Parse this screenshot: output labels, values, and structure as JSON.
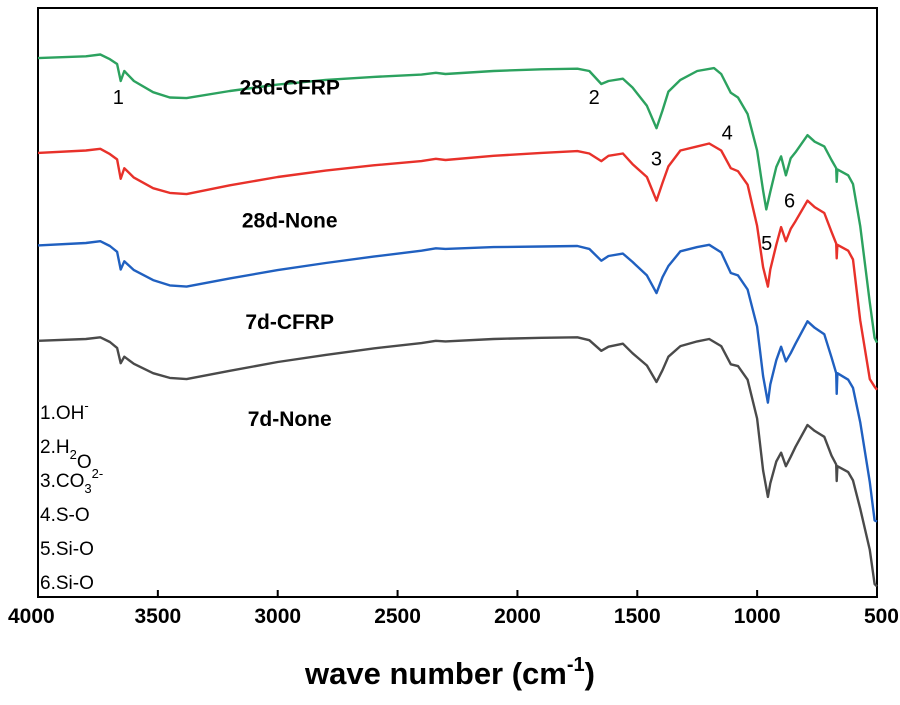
{
  "chart_data": {
    "type": "line",
    "title": "",
    "xlabel_main": "wave number  (cm",
    "xlabel_sup": "-1",
    "xlabel_end": ")",
    "ylabel": "",
    "xlim": [
      4000,
      500
    ],
    "ylim": [
      0,
      1
    ],
    "xticks": [
      4000,
      3500,
      3000,
      2500,
      2000,
      1500,
      1000,
      500
    ],
    "xtick_labels": [
      "4000",
      "3500",
      "3000",
      "2500",
      "2000",
      "1500",
      "1000",
      "500"
    ],
    "grid": false,
    "series": [
      {
        "name": "28d-CFRP",
        "color": "#2ca25f",
        "points": [
          [
            4000,
            0.915
          ],
          [
            3800,
            0.918
          ],
          [
            3740,
            0.921
          ],
          [
            3700,
            0.913
          ],
          [
            3670,
            0.905
          ],
          [
            3655,
            0.876
          ],
          [
            3640,
            0.893
          ],
          [
            3600,
            0.876
          ],
          [
            3520,
            0.857
          ],
          [
            3450,
            0.848
          ],
          [
            3380,
            0.847
          ],
          [
            3200,
            0.859
          ],
          [
            3000,
            0.87
          ],
          [
            2800,
            0.878
          ],
          [
            2600,
            0.883
          ],
          [
            2400,
            0.887
          ],
          [
            2340,
            0.89
          ],
          [
            2300,
            0.888
          ],
          [
            2100,
            0.893
          ],
          [
            1900,
            0.896
          ],
          [
            1750,
            0.897
          ],
          [
            1700,
            0.893
          ],
          [
            1650,
            0.871
          ],
          [
            1620,
            0.876
          ],
          [
            1560,
            0.88
          ],
          [
            1520,
            0.865
          ],
          [
            1460,
            0.834
          ],
          [
            1420,
            0.796
          ],
          [
            1395,
            0.826
          ],
          [
            1370,
            0.858
          ],
          [
            1320,
            0.878
          ],
          [
            1250,
            0.893
          ],
          [
            1180,
            0.898
          ],
          [
            1150,
            0.888
          ],
          [
            1110,
            0.856
          ],
          [
            1080,
            0.848
          ],
          [
            1040,
            0.82
          ],
          [
            1000,
            0.758
          ],
          [
            975,
            0.69
          ],
          [
            962,
            0.658
          ],
          [
            945,
            0.688
          ],
          [
            920,
            0.73
          ],
          [
            900,
            0.748
          ],
          [
            880,
            0.716
          ],
          [
            860,
            0.745
          ],
          [
            840,
            0.755
          ],
          [
            790,
            0.784
          ],
          [
            760,
            0.773
          ],
          [
            720,
            0.765
          ],
          [
            690,
            0.742
          ],
          [
            670,
            0.728
          ],
          [
            668,
            0.705
          ],
          [
            665,
            0.726
          ],
          [
            620,
            0.716
          ],
          [
            600,
            0.701
          ],
          [
            570,
            0.63
          ],
          [
            530,
            0.5
          ],
          [
            510,
            0.44
          ],
          [
            500,
            0.432
          ]
        ]
      },
      {
        "name": "28d-None",
        "color": "#e8312a",
        "points": [
          [
            4000,
            0.754
          ],
          [
            3800,
            0.758
          ],
          [
            3740,
            0.761
          ],
          [
            3700,
            0.752
          ],
          [
            3670,
            0.743
          ],
          [
            3655,
            0.71
          ],
          [
            3640,
            0.728
          ],
          [
            3600,
            0.712
          ],
          [
            3520,
            0.694
          ],
          [
            3450,
            0.686
          ],
          [
            3380,
            0.684
          ],
          [
            3200,
            0.699
          ],
          [
            3000,
            0.713
          ],
          [
            2800,
            0.724
          ],
          [
            2600,
            0.733
          ],
          [
            2400,
            0.74
          ],
          [
            2340,
            0.744
          ],
          [
            2300,
            0.742
          ],
          [
            2100,
            0.749
          ],
          [
            1900,
            0.754
          ],
          [
            1750,
            0.757
          ],
          [
            1700,
            0.753
          ],
          [
            1650,
            0.74
          ],
          [
            1620,
            0.749
          ],
          [
            1560,
            0.753
          ],
          [
            1520,
            0.735
          ],
          [
            1460,
            0.713
          ],
          [
            1420,
            0.673
          ],
          [
            1395,
            0.703
          ],
          [
            1370,
            0.731
          ],
          [
            1320,
            0.758
          ],
          [
            1250,
            0.765
          ],
          [
            1200,
            0.77
          ],
          [
            1150,
            0.758
          ],
          [
            1110,
            0.728
          ],
          [
            1080,
            0.723
          ],
          [
            1040,
            0.7
          ],
          [
            1000,
            0.63
          ],
          [
            975,
            0.56
          ],
          [
            955,
            0.527
          ],
          [
            945,
            0.556
          ],
          [
            920,
            0.598
          ],
          [
            900,
            0.628
          ],
          [
            880,
            0.604
          ],
          [
            860,
            0.625
          ],
          [
            840,
            0.638
          ],
          [
            790,
            0.673
          ],
          [
            760,
            0.662
          ],
          [
            720,
            0.652
          ],
          [
            690,
            0.62
          ],
          [
            670,
            0.6
          ],
          [
            668,
            0.575
          ],
          [
            665,
            0.598
          ],
          [
            620,
            0.588
          ],
          [
            600,
            0.573
          ],
          [
            570,
            0.47
          ],
          [
            530,
            0.37
          ],
          [
            510,
            0.357
          ],
          [
            500,
            0.352
          ]
        ]
      },
      {
        "name": "7d-CFRP",
        "color": "#2060c0",
        "points": [
          [
            4000,
            0.597
          ],
          [
            3800,
            0.601
          ],
          [
            3740,
            0.604
          ],
          [
            3700,
            0.596
          ],
          [
            3670,
            0.586
          ],
          [
            3655,
            0.556
          ],
          [
            3640,
            0.57
          ],
          [
            3600,
            0.555
          ],
          [
            3520,
            0.538
          ],
          [
            3450,
            0.529
          ],
          [
            3380,
            0.527
          ],
          [
            3200,
            0.541
          ],
          [
            3000,
            0.555
          ],
          [
            2800,
            0.567
          ],
          [
            2600,
            0.578
          ],
          [
            2400,
            0.588
          ],
          [
            2340,
            0.592
          ],
          [
            2300,
            0.591
          ],
          [
            2100,
            0.594
          ],
          [
            1900,
            0.595
          ],
          [
            1750,
            0.596
          ],
          [
            1700,
            0.591
          ],
          [
            1650,
            0.571
          ],
          [
            1620,
            0.579
          ],
          [
            1560,
            0.583
          ],
          [
            1520,
            0.569
          ],
          [
            1460,
            0.546
          ],
          [
            1420,
            0.516
          ],
          [
            1395,
            0.543
          ],
          [
            1370,
            0.562
          ],
          [
            1320,
            0.587
          ],
          [
            1250,
            0.594
          ],
          [
            1200,
            0.598
          ],
          [
            1150,
            0.585
          ],
          [
            1110,
            0.55
          ],
          [
            1080,
            0.546
          ],
          [
            1040,
            0.522
          ],
          [
            1000,
            0.459
          ],
          [
            975,
            0.375
          ],
          [
            955,
            0.33
          ],
          [
            945,
            0.361
          ],
          [
            920,
            0.402
          ],
          [
            900,
            0.425
          ],
          [
            880,
            0.4
          ],
          [
            860,
            0.414
          ],
          [
            840,
            0.43
          ],
          [
            790,
            0.468
          ],
          [
            760,
            0.457
          ],
          [
            720,
            0.446
          ],
          [
            690,
            0.407
          ],
          [
            670,
            0.38
          ],
          [
            668,
            0.345
          ],
          [
            665,
            0.38
          ],
          [
            620,
            0.369
          ],
          [
            600,
            0.355
          ],
          [
            570,
            0.297
          ],
          [
            530,
            0.195
          ],
          [
            510,
            0.13
          ],
          [
            500,
            0.128
          ]
        ]
      },
      {
        "name": "7d-None",
        "color": "#4a4a4a",
        "points": [
          [
            4000,
            0.435
          ],
          [
            3800,
            0.438
          ],
          [
            3740,
            0.441
          ],
          [
            3700,
            0.433
          ],
          [
            3670,
            0.423
          ],
          [
            3655,
            0.397
          ],
          [
            3640,
            0.408
          ],
          [
            3600,
            0.396
          ],
          [
            3520,
            0.38
          ],
          [
            3450,
            0.372
          ],
          [
            3380,
            0.37
          ],
          [
            3200,
            0.384
          ],
          [
            3000,
            0.399
          ],
          [
            2800,
            0.411
          ],
          [
            2600,
            0.422
          ],
          [
            2400,
            0.431
          ],
          [
            2340,
            0.435
          ],
          [
            2300,
            0.434
          ],
          [
            2100,
            0.438
          ],
          [
            1900,
            0.44
          ],
          [
            1750,
            0.441
          ],
          [
            1700,
            0.436
          ],
          [
            1650,
            0.418
          ],
          [
            1620,
            0.425
          ],
          [
            1560,
            0.43
          ],
          [
            1520,
            0.414
          ],
          [
            1460,
            0.393
          ],
          [
            1420,
            0.365
          ],
          [
            1395,
            0.385
          ],
          [
            1370,
            0.408
          ],
          [
            1320,
            0.426
          ],
          [
            1250,
            0.434
          ],
          [
            1200,
            0.438
          ],
          [
            1150,
            0.426
          ],
          [
            1110,
            0.395
          ],
          [
            1080,
            0.392
          ],
          [
            1040,
            0.369
          ],
          [
            1000,
            0.303
          ],
          [
            975,
            0.215
          ],
          [
            955,
            0.17
          ],
          [
            945,
            0.193
          ],
          [
            920,
            0.23
          ],
          [
            900,
            0.245
          ],
          [
            880,
            0.222
          ],
          [
            860,
            0.238
          ],
          [
            840,
            0.255
          ],
          [
            790,
            0.292
          ],
          [
            760,
            0.282
          ],
          [
            720,
            0.272
          ],
          [
            690,
            0.24
          ],
          [
            670,
            0.225
          ],
          [
            668,
            0.197
          ],
          [
            665,
            0.222
          ],
          [
            620,
            0.212
          ],
          [
            600,
            0.198
          ],
          [
            570,
            0.15
          ],
          [
            530,
            0.08
          ],
          [
            510,
            0.022
          ],
          [
            500,
            0.018
          ]
        ]
      }
    ],
    "series_labels": [
      {
        "text": "28d-CFRP",
        "x": 2950,
        "y": 0.853
      },
      {
        "text": "28d-None",
        "x": 2950,
        "y": 0.627
      },
      {
        "text": "7d-CFRP",
        "x": 2950,
        "y": 0.455
      },
      {
        "text": "7d-None",
        "x": 2950,
        "y": 0.29
      }
    ],
    "peak_labels": [
      {
        "text": "1",
        "x": 3665,
        "y": 0.837
      },
      {
        "text": "2",
        "x": 1680,
        "y": 0.837
      },
      {
        "text": "3",
        "x": 1420,
        "y": 0.733
      },
      {
        "text": "4",
        "x": 1125,
        "y": 0.777
      },
      {
        "text": "5",
        "x": 960,
        "y": 0.589
      },
      {
        "text": "6",
        "x": 865,
        "y": 0.661
      }
    ],
    "legend": [
      {
        "main": "1.OH",
        "sub": "",
        "sup": "-",
        "tail": ""
      },
      {
        "main": "2.H",
        "sub": "2",
        "sup": "",
        "tail": "O"
      },
      {
        "main": "3.CO",
        "sub": "3",
        "sup": "2-",
        "tail": ""
      },
      {
        "main": "4.S-O",
        "sub": "",
        "sup": "",
        "tail": ""
      },
      {
        "main": "5.Si-O",
        "sub": "",
        "sup": "",
        "tail": ""
      },
      {
        "main": "6.Si-O",
        "sub": "",
        "sup": "",
        "tail": ""
      }
    ]
  }
}
